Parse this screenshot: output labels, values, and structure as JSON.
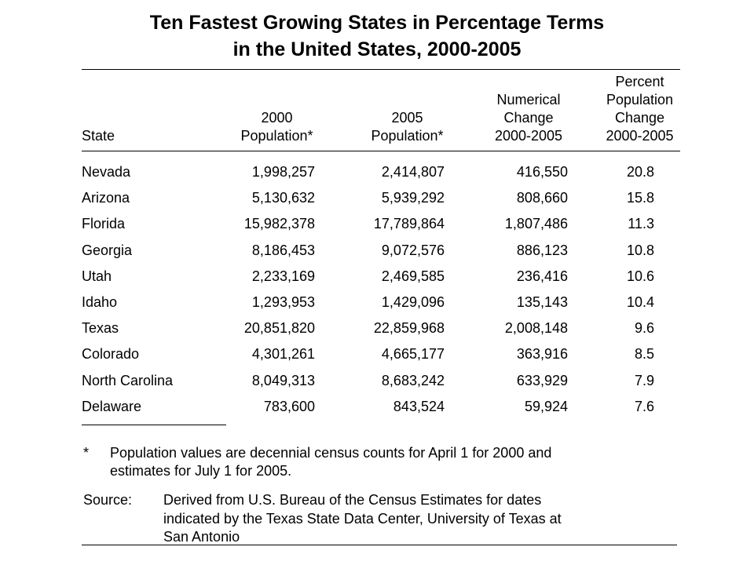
{
  "title": {
    "line1": "Ten Fastest Growing States in Percentage Terms",
    "line2": "in the United States, 2000-2005"
  },
  "headers": {
    "state": "State",
    "pop2000": [
      "2000",
      "Population*"
    ],
    "pop2005": [
      "2005",
      "Population*"
    ],
    "numerical": [
      "Numerical",
      "Change",
      "2000-2005"
    ],
    "percent": [
      "Percent",
      "Population",
      "Change",
      "2000-2005"
    ]
  },
  "rows": [
    {
      "state": "Nevada",
      "pop2000": "1,998,257",
      "pop2005": "2,414,807",
      "change": "416,550",
      "pct": "20.8"
    },
    {
      "state": "Arizona",
      "pop2000": "5,130,632",
      "pop2005": "5,939,292",
      "change": "808,660",
      "pct": "15.8"
    },
    {
      "state": "Florida",
      "pop2000": "15,982,378",
      "pop2005": "17,789,864",
      "change": "1,807,486",
      "pct": "11.3"
    },
    {
      "state": "Georgia",
      "pop2000": "8,186,453",
      "pop2005": "9,072,576",
      "change": "886,123",
      "pct": "10.8"
    },
    {
      "state": "Utah",
      "pop2000": "2,233,169",
      "pop2005": "2,469,585",
      "change": "236,416",
      "pct": "10.6"
    },
    {
      "state": "Idaho",
      "pop2000": "1,293,953",
      "pop2005": "1,429,096",
      "change": "135,143",
      "pct": "10.4"
    },
    {
      "state": "Texas",
      "pop2000": "20,851,820",
      "pop2005": "22,859,968",
      "change": "2,008,148",
      "pct": "9.6"
    },
    {
      "state": "Colorado",
      "pop2000": "4,301,261",
      "pop2005": "4,665,177",
      "change": "363,916",
      "pct": "8.5"
    },
    {
      "state": "North Carolina",
      "pop2000": "8,049,313",
      "pop2005": "8,683,242",
      "change": "633,929",
      "pct": "7.9"
    },
    {
      "state": "Delaware",
      "pop2000": "783,600",
      "pop2005": "843,524",
      "change": "59,924",
      "pct": "7.6"
    }
  ],
  "footnote": {
    "marker": "*",
    "lines": [
      "Population values are decennial census counts for April 1 for 2000 and",
      "estimates for July 1 for 2005."
    ]
  },
  "source": {
    "label": "Source:",
    "lines": [
      "Derived from U.S. Bureau of the Census Estimates for dates",
      "indicated by the Texas State Data Center, University of Texas at",
      "San Antonio"
    ]
  }
}
